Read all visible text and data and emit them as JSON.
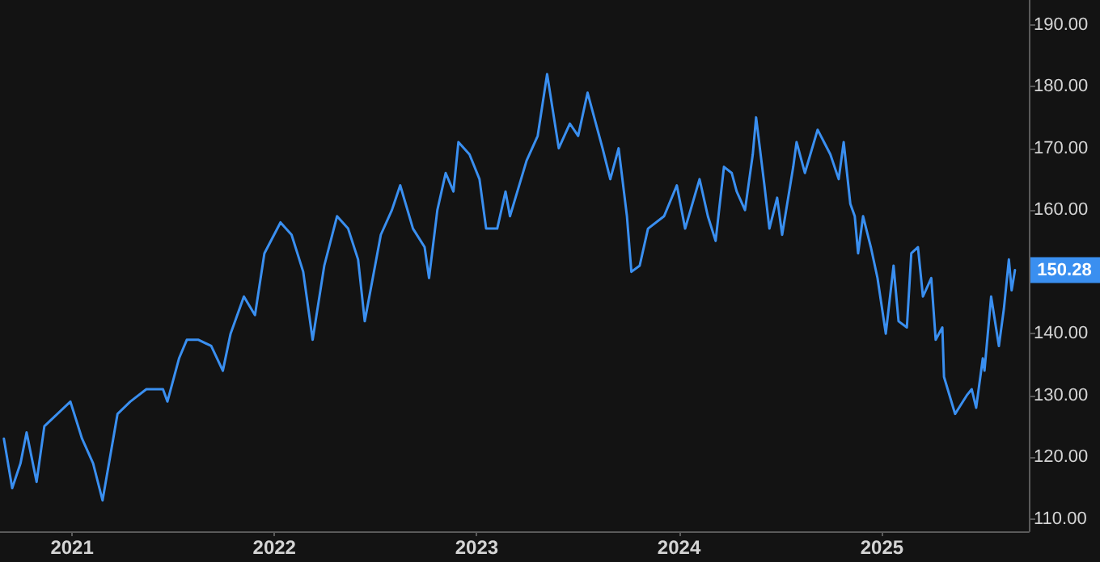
{
  "chart_data": {
    "type": "line",
    "x": [
      "2020-08-31",
      "2020-09-15",
      "2020-09-30",
      "2020-10-11",
      "2020-10-29",
      "2020-11-12",
      "2020-12-29",
      "2021-01-19",
      "2021-02-08",
      "2021-02-25",
      "2021-03-24",
      "2021-04-16",
      "2021-05-15",
      "2021-06-14",
      "2021-06-22",
      "2021-07-13",
      "2021-07-27",
      "2021-08-17",
      "2021-09-09",
      "2021-09-30",
      "2021-10-14",
      "2021-11-07",
      "2021-11-27",
      "2021-12-14",
      "2022-01-12",
      "2022-02-01",
      "2022-02-22",
      "2022-03-11",
      "2022-04-01",
      "2022-04-24",
      "2022-05-14",
      "2022-06-01",
      "2022-06-13",
      "2022-07-12",
      "2022-08-01",
      "2022-08-16",
      "2022-09-08",
      "2022-09-29",
      "2022-10-07",
      "2022-10-22",
      "2022-11-06",
      "2022-11-20",
      "2022-11-29",
      "2022-12-19",
      "2023-01-06",
      "2023-01-18",
      "2023-02-07",
      "2023-02-22",
      "2023-03-02",
      "2023-04-01",
      "2023-04-21",
      "2023-05-08",
      "2023-05-29",
      "2023-06-18",
      "2023-07-03",
      "2023-07-20",
      "2023-08-16",
      "2023-08-30",
      "2023-09-14",
      "2023-09-29",
      "2023-10-07",
      "2023-10-22",
      "2023-11-06",
      "2023-12-05",
      "2023-12-28",
      "2024-01-12",
      "2024-02-07",
      "2024-02-22",
      "2024-03-07",
      "2024-03-22",
      "2024-04-05",
      "2024-04-14",
      "2024-04-29",
      "2024-05-13",
      "2024-05-19",
      "2024-06-03",
      "2024-06-12",
      "2024-06-26",
      "2024-07-05",
      "2024-07-25",
      "2024-07-31",
      "2024-08-15",
      "2024-09-07",
      "2024-09-30",
      "2024-10-15",
      "2024-10-24",
      "2024-11-05",
      "2024-11-13",
      "2024-11-19",
      "2024-11-28",
      "2024-12-12",
      "2024-12-24",
      "2025-01-08",
      "2025-01-22",
      "2025-01-31",
      "2025-02-15",
      "2025-02-23",
      "2025-03-07",
      "2025-03-16",
      "2025-03-31",
      "2025-04-08",
      "2025-04-20",
      "2025-04-23",
      "2025-05-13",
      "2025-06-03",
      "2025-06-12",
      "2025-06-20",
      "2025-07-02",
      "2025-07-05",
      "2025-07-17",
      "2025-07-31",
      "2025-08-09",
      "2025-08-18",
      "2025-08-23",
      "2025-08-29"
    ],
    "series": [
      {
        "color": "#3a8ff0",
        "values": [
          123,
          115,
          119,
          124,
          116,
          125,
          129,
          123,
          119,
          113,
          127,
          129,
          131,
          131,
          129,
          136,
          139,
          139,
          138,
          134,
          140,
          146,
          143,
          153,
          158,
          156,
          150,
          139,
          151,
          159,
          157,
          152,
          142,
          156,
          160,
          164,
          157,
          154,
          149,
          160,
          166,
          163,
          171,
          169,
          165,
          157,
          157,
          163,
          159,
          168,
          172,
          182,
          170,
          174,
          172,
          179,
          170,
          165,
          170,
          159,
          150,
          151,
          157,
          159,
          164,
          157,
          165,
          159,
          155,
          167,
          166,
          163,
          160,
          169,
          175,
          164,
          157,
          162,
          156,
          167,
          171,
          166,
          173,
          169,
          165,
          171,
          161,
          159,
          153,
          159,
          154,
          149,
          140,
          151,
          142,
          141,
          153,
          154,
          146,
          149,
          139,
          141,
          133,
          127,
          130,
          131,
          128,
          136,
          134,
          146,
          138,
          144,
          152,
          147,
          150.28
        ]
      }
    ],
    "xlim": [
      "2020-08-24",
      "2025-09-23"
    ],
    "xticks": [
      "2021",
      "2022",
      "2023",
      "2024",
      "2025"
    ],
    "ylim": [
      108,
      194
    ],
    "yticks": [
      {
        "value": 110,
        "label": "110.00"
      },
      {
        "value": 120,
        "label": "120.00"
      },
      {
        "value": 130,
        "label": "130.00"
      },
      {
        "value": 140,
        "label": "140.00"
      },
      {
        "value": 160,
        "label": "160.00"
      },
      {
        "value": 170,
        "label": "170.00"
      },
      {
        "value": 180,
        "label": "180.00"
      },
      {
        "value": 190,
        "label": "190.00"
      }
    ],
    "annotations": [
      {
        "text": "150.28",
        "x": "2025-08-29",
        "y": 150.28
      }
    ],
    "grid": false,
    "marker": "none",
    "line_style": "solid"
  }
}
